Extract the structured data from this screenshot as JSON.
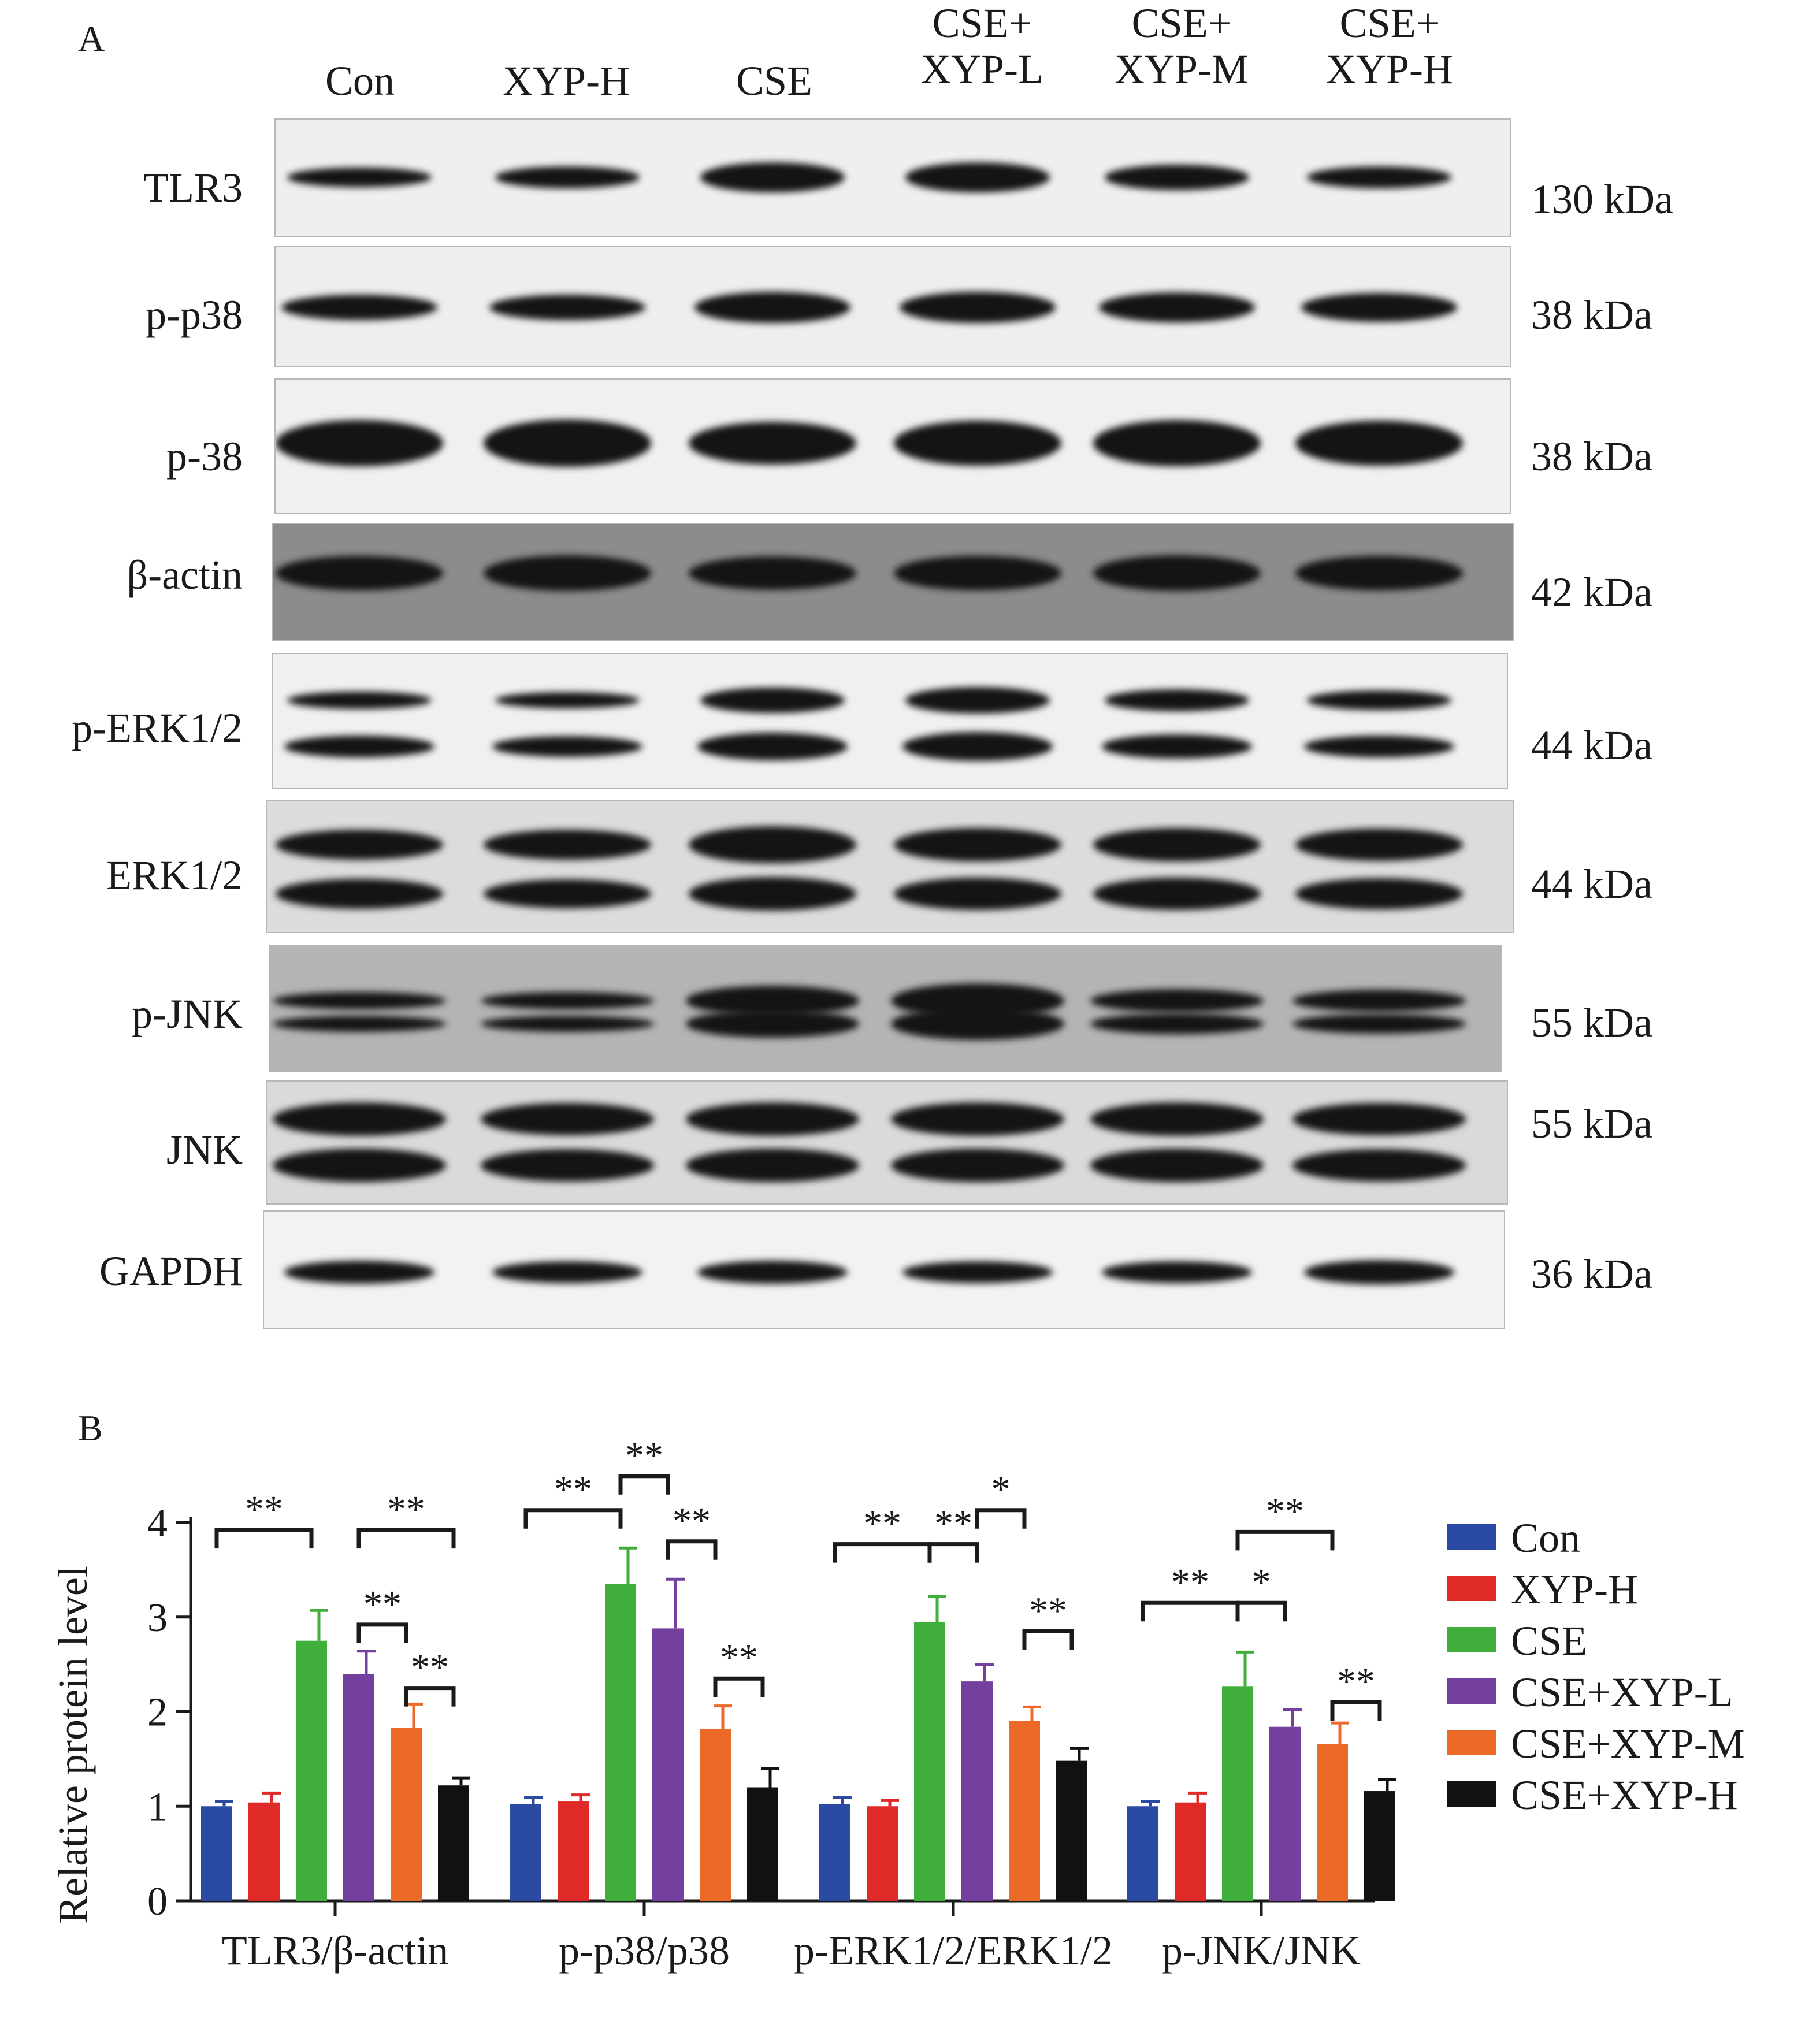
{
  "panel_a": {
    "letter": "A",
    "lanes": [
      {
        "line1": "",
        "line2": "Con"
      },
      {
        "line1": "",
        "line2": "XYP-H"
      },
      {
        "line1": "",
        "line2": "CSE"
      },
      {
        "line1": "CSE+",
        "line2": "XYP-L"
      },
      {
        "line1": "CSE+",
        "line2": "XYP-M"
      },
      {
        "line1": "CSE+",
        "line2": "XYP-H"
      }
    ],
    "rows": [
      {
        "label": "TLR3",
        "kda": "130 kDa"
      },
      {
        "label": "p-p38",
        "kda": "38 kDa"
      },
      {
        "label": "p-38",
        "kda": "38 kDa"
      },
      {
        "label": "β-actin",
        "kda": "42 kDa"
      },
      {
        "label": "p-ERK1/2",
        "kda": "44 kDa"
      },
      {
        "label": "ERK1/2",
        "kda": "44 kDa"
      },
      {
        "label": "p-JNK",
        "kda": "55 kDa"
      },
      {
        "label": "JNK",
        "kda": "55 kDa"
      },
      {
        "label": "GAPDH",
        "kda": "36 kDa"
      }
    ]
  },
  "panel_b": {
    "letter": "B"
  },
  "colors": {
    "Con": "#2b4aa3",
    "XYP-H": "#e02a27",
    "CSE": "#3fae3a",
    "CSE+XYP-L": "#7440a0",
    "CSE+XYP-M": "#ec6a27",
    "CSE+XYP-H": "#111111"
  },
  "chart_data": {
    "type": "bar",
    "title": "",
    "xlabel": "",
    "ylabel": "Relative protein level",
    "ylim": [
      0,
      4
    ],
    "yticks": [
      0,
      1,
      2,
      3,
      4
    ],
    "categories": [
      "TLR3/β-actin",
      "p-p38/p38",
      "p-ERK1/2/ERK1/2",
      "p-JNK/JNK"
    ],
    "legend_position": "right",
    "series": [
      {
        "name": "Con",
        "values": [
          1.0,
          1.02,
          1.02,
          1.0
        ],
        "errors": [
          0.05,
          0.07,
          0.07,
          0.05
        ]
      },
      {
        "name": "XYP-H",
        "values": [
          1.04,
          1.05,
          1.0,
          1.04
        ],
        "errors": [
          0.1,
          0.07,
          0.06,
          0.1
        ]
      },
      {
        "name": "CSE",
        "values": [
          2.75,
          3.35,
          2.95,
          2.27
        ],
        "errors": [
          0.32,
          0.38,
          0.27,
          0.36
        ]
      },
      {
        "name": "CSE+XYP-L",
        "values": [
          2.4,
          2.88,
          2.32,
          1.84
        ],
        "errors": [
          0.24,
          0.52,
          0.18,
          0.18
        ]
      },
      {
        "name": "CSE+XYP-M",
        "values": [
          1.83,
          1.82,
          1.9,
          1.66
        ],
        "errors": [
          0.25,
          0.24,
          0.15,
          0.22
        ]
      },
      {
        "name": "CSE+XYP-H",
        "values": [
          1.22,
          1.2,
          1.48,
          1.16
        ],
        "errors": [
          0.08,
          0.2,
          0.13,
          0.12
        ]
      }
    ],
    "significance": [
      {
        "group": 0,
        "from": 0,
        "to": 2,
        "label": "**",
        "y": 3.92
      },
      {
        "group": 0,
        "from": 3,
        "to": 5,
        "label": "**",
        "y": 3.92
      },
      {
        "group": 0,
        "from": 3,
        "to": 4,
        "label": "**",
        "y": 2.92
      },
      {
        "group": 0,
        "from": 4,
        "to": 5,
        "label": "**",
        "y": 2.25
      },
      {
        "group": 1,
        "from": 0,
        "to": 2,
        "label": "**",
        "y": 4.13
      },
      {
        "group": 1,
        "from": 2,
        "to": 3,
        "label": "**",
        "y": 4.49
      },
      {
        "group": 1,
        "from": 3,
        "to": 4,
        "label": "**",
        "y": 3.8
      },
      {
        "group": 1,
        "from": 4,
        "to": 5,
        "label": "**",
        "y": 2.35
      },
      {
        "group": 2,
        "from": 0,
        "to": 2,
        "label": "**",
        "y": 3.77
      },
      {
        "group": 2,
        "from": 2,
        "to": 3,
        "label": "**",
        "y": 3.77
      },
      {
        "group": 2,
        "from": 3,
        "to": 4,
        "label": "*",
        "y": 4.13
      },
      {
        "group": 2,
        "from": 4,
        "to": 5,
        "label": "**",
        "y": 2.85
      },
      {
        "group": 3,
        "from": 0,
        "to": 2,
        "label": "**",
        "y": 3.15
      },
      {
        "group": 3,
        "from": 2,
        "to": 4,
        "label": "**",
        "y": 3.9
      },
      {
        "group": 3,
        "from": 2,
        "to": 3,
        "label": "*",
        "y": 3.15
      },
      {
        "group": 3,
        "from": 4,
        "to": 5,
        "label": "**",
        "y": 2.1
      }
    ]
  }
}
